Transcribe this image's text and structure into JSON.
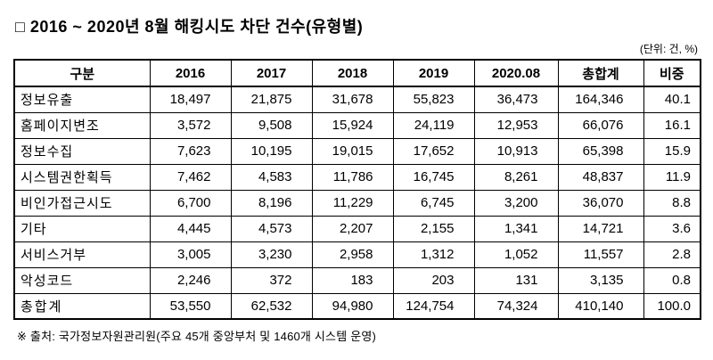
{
  "title": "□ 2016 ~ 2020년 8월 해킹시도 차단 건수(유형별)",
  "unit_note": "(단위: 건, %)",
  "source_note": "※ 출처: 국가정보자원관리원(주요 45개 중앙부처 및 1460개 시스템 운영)",
  "chart_data": {
    "type": "table",
    "title": "2016 ~ 2020년 8월 해킹시도 차단 건수(유형별)",
    "columns": [
      "구분",
      "2016",
      "2017",
      "2018",
      "2019",
      "2020.08",
      "총합계",
      "비중"
    ],
    "rows": [
      [
        "정보유출",
        "18,497",
        "21,875",
        "31,678",
        "55,823",
        "36,473",
        "164,346",
        "40.1"
      ],
      [
        "홈페이지변조",
        "3,572",
        "9,508",
        "15,924",
        "24,119",
        "12,953",
        "66,076",
        "16.1"
      ],
      [
        "정보수집",
        "7,623",
        "10,195",
        "19,015",
        "17,652",
        "10,913",
        "65,398",
        "15.9"
      ],
      [
        "시스템권한획득",
        "7,462",
        "4,583",
        "11,786",
        "16,745",
        "8,261",
        "48,837",
        "11.9"
      ],
      [
        "비인가접근시도",
        "6,700",
        "8,196",
        "11,229",
        "6,745",
        "3,200",
        "36,070",
        "8.8"
      ],
      [
        "기타",
        "4,445",
        "4,573",
        "2,207",
        "2,155",
        "1,341",
        "14,721",
        "3.6"
      ],
      [
        "서비스거부",
        "3,005",
        "3,230",
        "2,958",
        "1,312",
        "1,052",
        "11,557",
        "2.8"
      ],
      [
        "악성코드",
        "2,246",
        "372",
        "183",
        "203",
        "131",
        "3,135",
        "0.8"
      ],
      [
        "총합계",
        "53,550",
        "62,532",
        "94,980",
        "124,754",
        "74,324",
        "410,140",
        "100.0"
      ]
    ]
  }
}
